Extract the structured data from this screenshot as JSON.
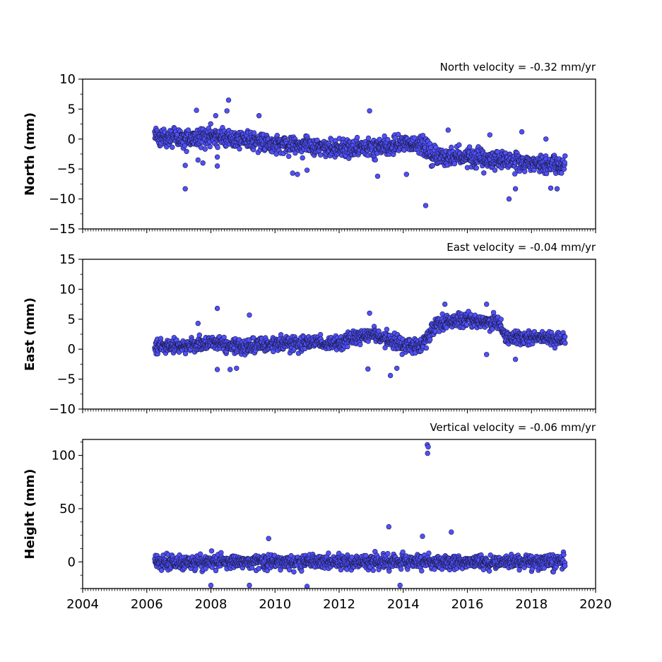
{
  "chart_data": [
    {
      "type": "scatter",
      "panel": "north",
      "ylabel": "North (mm)",
      "annotation": "North velocity = -0.32 mm/yr",
      "xlim": [
        2004,
        2020
      ],
      "ylim": [
        -15,
        10
      ],
      "yticks": [
        10,
        5,
        0,
        -5,
        -10,
        -15
      ],
      "marker_color": "#5050ff",
      "marker_edge": "#1a1a40",
      "series": [
        {
          "x_start": 2006.25,
          "x_end": 2019.05,
          "trend": [
            [
              2006.25,
              0.5
            ],
            [
              2007.0,
              0.0
            ],
            [
              2008.0,
              0.5
            ],
            [
              2009.0,
              0.0
            ],
            [
              2010.0,
              -1.0
            ],
            [
              2011.0,
              -1.0
            ],
            [
              2012.0,
              -1.5
            ],
            [
              2013.0,
              -1.5
            ],
            [
              2014.0,
              -1.0
            ],
            [
              2014.6,
              -1.0
            ],
            [
              2014.9,
              -3.0
            ],
            [
              2016.0,
              -3.0
            ],
            [
              2017.0,
              -3.5
            ],
            [
              2018.0,
              -4.0
            ],
            [
              2019.05,
              -4.5
            ]
          ],
          "scatter_sd": 1.4,
          "outliers": [
            {
              "x": 2007.2,
              "y": -8.3
            },
            {
              "x": 2007.2,
              "y": -4.4
            },
            {
              "x": 2007.6,
              "y": -3.5
            },
            {
              "x": 2007.75,
              "y": -4.0
            },
            {
              "x": 2008.2,
              "y": -4.5
            },
            {
              "x": 2008.2,
              "y": -3.0
            },
            {
              "x": 2007.55,
              "y": 4.8
            },
            {
              "x": 2008.15,
              "y": 3.9
            },
            {
              "x": 2008.5,
              "y": 4.7
            },
            {
              "x": 2008.55,
              "y": 6.5
            },
            {
              "x": 2009.5,
              "y": 3.9
            },
            {
              "x": 2010.55,
              "y": -5.7
            },
            {
              "x": 2010.7,
              "y": -5.9
            },
            {
              "x": 2011.0,
              "y": -5.2
            },
            {
              "x": 2012.95,
              "y": 4.7
            },
            {
              "x": 2013.2,
              "y": -6.2
            },
            {
              "x": 2014.1,
              "y": -5.9
            },
            {
              "x": 2014.7,
              "y": -11.1
            },
            {
              "x": 2015.4,
              "y": 1.5
            },
            {
              "x": 2016.7,
              "y": 0.7
            },
            {
              "x": 2017.3,
              "y": -10.0
            },
            {
              "x": 2017.5,
              "y": -8.3
            },
            {
              "x": 2017.7,
              "y": 1.2
            },
            {
              "x": 2018.6,
              "y": -8.2
            },
            {
              "x": 2018.8,
              "y": -8.3
            },
            {
              "x": 2018.45,
              "y": 0.0
            }
          ]
        }
      ]
    },
    {
      "type": "scatter",
      "panel": "east",
      "ylabel": "East (mm)",
      "annotation": "East velocity = -0.04 mm/yr",
      "xlim": [
        2004,
        2020
      ],
      "ylim": [
        -10,
        15
      ],
      "yticks": [
        15,
        10,
        5,
        0,
        -5,
        -10
      ],
      "marker_color": "#5050ff",
      "marker_edge": "#1a1a40",
      "series": [
        {
          "x_start": 2006.25,
          "x_end": 2019.05,
          "trend": [
            [
              2006.25,
              0.5
            ],
            [
              2007.0,
              0.5
            ],
            [
              2008.0,
              1.0
            ],
            [
              2009.0,
              0.5
            ],
            [
              2010.0,
              0.8
            ],
            [
              2011.0,
              1.0
            ],
            [
              2012.0,
              1.2
            ],
            [
              2012.9,
              2.5
            ],
            [
              2013.5,
              1.5
            ],
            [
              2014.0,
              1.0
            ],
            [
              2014.6,
              0.5
            ],
            [
              2015.0,
              4.0
            ],
            [
              2015.8,
              5.0
            ],
            [
              2016.5,
              4.5
            ],
            [
              2017.0,
              4.5
            ],
            [
              2017.2,
              2.0
            ],
            [
              2018.0,
              2.0
            ],
            [
              2019.05,
              1.5
            ]
          ],
          "scatter_sd": 1.1,
          "outliers": [
            {
              "x": 2008.2,
              "y": 6.8
            },
            {
              "x": 2009.2,
              "y": 5.7
            },
            {
              "x": 2008.2,
              "y": -3.4
            },
            {
              "x": 2008.6,
              "y": -3.4
            },
            {
              "x": 2008.8,
              "y": -3.2
            },
            {
              "x": 2007.6,
              "y": 4.3
            },
            {
              "x": 2012.95,
              "y": 6.0
            },
            {
              "x": 2012.9,
              "y": -3.3
            },
            {
              "x": 2013.6,
              "y": -4.4
            },
            {
              "x": 2013.8,
              "y": -3.2
            },
            {
              "x": 2015.3,
              "y": 7.5
            },
            {
              "x": 2016.6,
              "y": 7.5
            },
            {
              "x": 2016.6,
              "y": -0.9
            },
            {
              "x": 2017.5,
              "y": -1.7
            }
          ]
        }
      ]
    },
    {
      "type": "scatter",
      "panel": "height",
      "ylabel": "Height (mm)",
      "annotation": "Vertical velocity = -0.06 mm/yr",
      "xlim": [
        2004,
        2020
      ],
      "ylim": [
        -25,
        115
      ],
      "yticks": [
        100,
        50,
        0
      ],
      "xticks": [
        2004,
        2006,
        2008,
        2010,
        2012,
        2014,
        2016,
        2018,
        2020
      ],
      "marker_color": "#5050ff",
      "marker_edge": "#1a1a40",
      "series": [
        {
          "x_start": 2006.25,
          "x_end": 2019.05,
          "trend": [
            [
              2006.25,
              0.0
            ],
            [
              2008.0,
              0.0
            ],
            [
              2010.0,
              0.0
            ],
            [
              2012.0,
              0.0
            ],
            [
              2014.0,
              0.0
            ],
            [
              2016.0,
              0.0
            ],
            [
              2018.0,
              0.0
            ],
            [
              2019.05,
              0.0
            ]
          ],
          "scatter_sd": 6.0,
          "outliers": [
            {
              "x": 2014.75,
              "y": 110
            },
            {
              "x": 2014.78,
              "y": 108
            },
            {
              "x": 2014.76,
              "y": 102
            },
            {
              "x": 2013.55,
              "y": 33
            },
            {
              "x": 2015.5,
              "y": 28
            },
            {
              "x": 2014.6,
              "y": 24
            },
            {
              "x": 2009.8,
              "y": 22
            },
            {
              "x": 2013.9,
              "y": -22
            },
            {
              "x": 2011.0,
              "y": -23
            },
            {
              "x": 2009.2,
              "y": -22
            },
            {
              "x": 2008.0,
              "y": -22
            }
          ]
        }
      ]
    }
  ]
}
